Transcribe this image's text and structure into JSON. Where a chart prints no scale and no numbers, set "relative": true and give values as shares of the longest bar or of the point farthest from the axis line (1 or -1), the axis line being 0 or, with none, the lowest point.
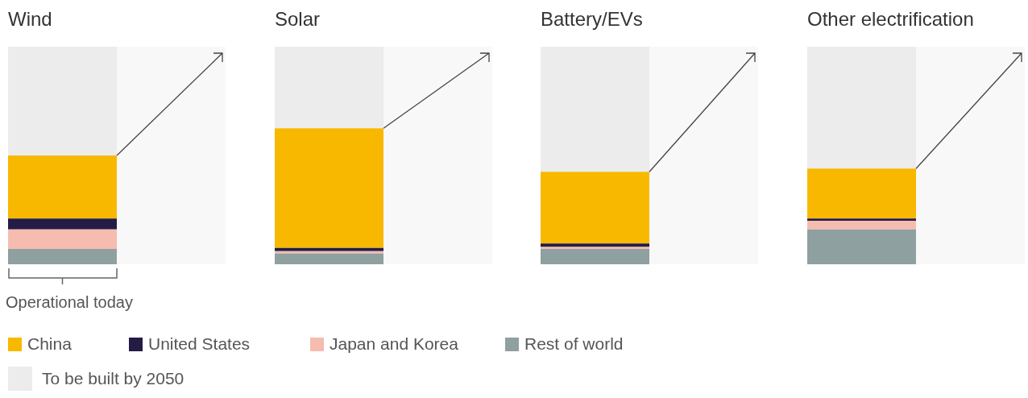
{
  "chart_data": [
    {
      "type": "bar",
      "title": "Wind",
      "categories": [
        null
      ],
      "relative": true,
      "stacked": true,
      "legend": "bottom",
      "annotations": [
        "Operational today"
      ],
      "series": [
        {
          "name": "Rest of world",
          "color": "#8fa0a0",
          "values": [
            0.07
          ]
        },
        {
          "name": "Japan and Korea",
          "color": "#f6bcb0",
          "values": [
            0.09
          ]
        },
        {
          "name": "United States",
          "color": "#241c45",
          "values": [
            0.05
          ]
        },
        {
          "name": "China",
          "color": "#f8b800",
          "values": [
            0.29
          ]
        },
        {
          "name": "To be built by 2050",
          "color": "#ececec",
          "values": [
            0.5
          ]
        }
      ]
    },
    {
      "type": "bar",
      "title": "Solar",
      "categories": [
        null
      ],
      "relative": true,
      "stacked": true,
      "series": [
        {
          "color": "#8fa0a0",
          "values": [
            0.05
          ]
        },
        {
          "color": "#f6bcb0",
          "values": [
            0.01
          ]
        },
        {
          "color": "#241c45",
          "values": [
            0.015
          ]
        },
        {
          "color": "#f8b800",
          "values": [
            0.55
          ]
        },
        {
          "color": "#ececec",
          "values": [
            0.375
          ]
        }
      ]
    },
    {
      "type": "bar",
      "title": "Battery/EVs",
      "categories": [
        null
      ],
      "relative": true,
      "stacked": true,
      "series": [
        {
          "color": "#8fa0a0",
          "values": [
            0.07
          ]
        },
        {
          "color": "#f6bcb0",
          "values": [
            0.01
          ]
        },
        {
          "color": "#241c45",
          "values": [
            0.015
          ]
        },
        {
          "color": "#f8b800",
          "values": [
            0.33
          ]
        },
        {
          "color": "#ececec",
          "values": [
            0.575
          ]
        }
      ]
    },
    {
      "type": "bar",
      "title": "Other electrification",
      "categories": [
        null
      ],
      "relative": true,
      "stacked": true,
      "series": [
        {
          "color": "#8fa0a0",
          "values": [
            0.16
          ]
        },
        {
          "color": "#f6bcb0",
          "values": [
            0.04
          ]
        },
        {
          "color": "#241c45",
          "values": [
            0.01
          ]
        },
        {
          "color": "#f8b800",
          "values": [
            0.23
          ]
        },
        {
          "color": "#ececec",
          "values": [
            0.56
          ]
        }
      ]
    }
  ]
}
